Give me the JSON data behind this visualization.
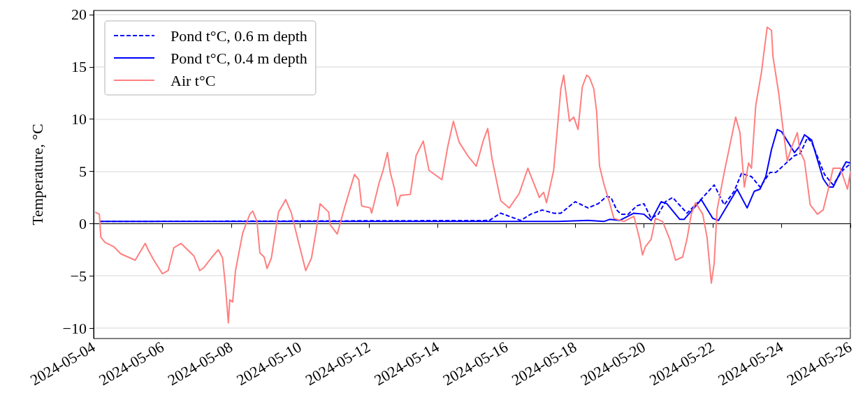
{
  "chart_data": {
    "type": "line",
    "ylabel": "Temperature, °C",
    "xlim": [
      "2024-05-04",
      "2024-05-26"
    ],
    "xticks": [
      {
        "value": "2024-05-04",
        "label": "2024-05-04"
      },
      {
        "value": "2024-05-06",
        "label": "2024-05-06"
      },
      {
        "value": "2024-05-08",
        "label": "2024-05-08"
      },
      {
        "value": "2024-05-10",
        "label": "2024-05-10"
      },
      {
        "value": "2024-05-12",
        "label": "2024-05-12"
      },
      {
        "value": "2024-05-14",
        "label": "2024-05-14"
      },
      {
        "value": "2024-05-16",
        "label": "2024-05-16"
      },
      {
        "value": "2024-05-18",
        "label": "2024-05-18"
      },
      {
        "value": "2024-05-20",
        "label": "2024-05-20"
      },
      {
        "value": "2024-05-22",
        "label": "2024-05-22"
      },
      {
        "value": "2024-05-24",
        "label": "2024-05-24"
      },
      {
        "value": "2024-05-26",
        "label": "2024-05-26"
      }
    ],
    "ylim": [
      -11,
      20.4
    ],
    "yticks": [
      {
        "value": -10,
        "label": "−10"
      },
      {
        "value": -5,
        "label": "−5"
      },
      0,
      5,
      10,
      15,
      20
    ],
    "grid": "y",
    "legend": "top left",
    "marker": "none",
    "series": [
      {
        "name": "Pond t°C, 0.6 m depth",
        "color": "#0000ff",
        "line_style": "dashed",
        "x": [
          "2024-05-04T04:00",
          "2024-05-15T12:00",
          "2024-05-15T20:00",
          "2024-05-16T10:00",
          "2024-05-16T17:00",
          "2024-05-17T01:00",
          "2024-05-17T09:00",
          "2024-05-17T14:00",
          "2024-05-18T00:00",
          "2024-05-18T09:00",
          "2024-05-18T16:00",
          "2024-05-18T22:00",
          "2024-05-19T01:00",
          "2024-05-19T05:00",
          "2024-05-19T08:00",
          "2024-05-19T13:00",
          "2024-05-19T19:00",
          "2024-05-20T00:00",
          "2024-05-20T05:00",
          "2024-05-20T10:00",
          "2024-05-20T15:00",
          "2024-05-20T20:00",
          "2024-05-21T06:00",
          "2024-05-21T15:00",
          "2024-05-22T01:00",
          "2024-05-22T08:00",
          "2024-05-22T15:00",
          "2024-05-22T20:00",
          "2024-05-23T03:00",
          "2024-05-23T09:00",
          "2024-05-23T16:00",
          "2024-05-23T20:00",
          "2024-05-24T09:00",
          "2024-05-24T13:00",
          "2024-05-24T18:00",
          "2024-05-24T21:00",
          "2024-05-25T06:00",
          "2024-05-25T12:00",
          "2024-05-25T18:00",
          "2024-05-25T22:00",
          "2024-05-26T00:00"
        ],
        "values": [
          0.2,
          0.3,
          1.0,
          0.3,
          0.9,
          1.3,
          1.0,
          1.0,
          2.1,
          1.5,
          1.9,
          2.6,
          2.5,
          1.3,
          0.9,
          0.9,
          1.7,
          1.9,
          0.5,
          0.9,
          2.1,
          2.5,
          1.0,
          2.2,
          3.7,
          1.8,
          3.1,
          4.8,
          4.5,
          3.5,
          4.9,
          4.9,
          6.5,
          6.7,
          8.2,
          7.8,
          4.7,
          3.7,
          5.0,
          5.5,
          5.7
        ]
      },
      {
        "name": "Pond t°C, 0.4 m depth",
        "color": "#0000ff",
        "line_style": "solid",
        "x": [
          "2024-05-04T04:00",
          "2024-05-17T12:00",
          "2024-05-18T09:00",
          "2024-05-18T20:00",
          "2024-05-19T00:00",
          "2024-05-19T07:00",
          "2024-05-19T17:00",
          "2024-05-20T00:00",
          "2024-05-20T05:00",
          "2024-05-20T12:00",
          "2024-05-20T16:00",
          "2024-05-21T01:00",
          "2024-05-21T04:00",
          "2024-05-21T16:00",
          "2024-05-22T00:00",
          "2024-05-22T04:00",
          "2024-05-22T17:00",
          "2024-05-23T00:00",
          "2024-05-23T05:00",
          "2024-05-23T09:00",
          "2024-05-23T13:00",
          "2024-05-23T17:00",
          "2024-05-23T21:00",
          "2024-05-24T00:00",
          "2024-05-24T09:00",
          "2024-05-24T12:00",
          "2024-05-24T16:00",
          "2024-05-24T21:00",
          "2024-05-25T05:00",
          "2024-05-25T09:00",
          "2024-05-25T12:00",
          "2024-05-25T17:00",
          "2024-05-25T21:00",
          "2024-05-26T00:00"
        ],
        "values": [
          0.2,
          0.2,
          0.3,
          0.2,
          0.4,
          0.3,
          1.0,
          0.9,
          0.3,
          2.1,
          1.9,
          0.4,
          0.4,
          2.3,
          0.5,
          0.3,
          3.3,
          1.5,
          3.1,
          3.3,
          4.5,
          7.1,
          9.0,
          8.8,
          6.8,
          7.3,
          8.5,
          8.0,
          4.3,
          3.5,
          3.5,
          4.9,
          5.9,
          5.8
        ]
      },
      {
        "name": "Air t°C",
        "color": "#ff7f7f",
        "line_style": "solid",
        "x": [
          "2024-05-04T01:00",
          "2024-05-04T04:00",
          "2024-05-04T05:00",
          "2024-05-04T08:00",
          "2024-05-04T14:00",
          "2024-05-04T19:00",
          "2024-05-05T05:00",
          "2024-05-05T12:00",
          "2024-05-05T14:00",
          "2024-05-05T18:00",
          "2024-05-06T00:00",
          "2024-05-06T04:00",
          "2024-05-06T08:00",
          "2024-05-06T13:00",
          "2024-05-06T22:00",
          "2024-05-07T02:00",
          "2024-05-07T05:00",
          "2024-05-07T10:00",
          "2024-05-07T15:00",
          "2024-05-07T18:00",
          "2024-05-07T20:00",
          "2024-05-07T22:00",
          "2024-05-07T23:00",
          "2024-05-08T01:00",
          "2024-05-08T03:00",
          "2024-05-08T08:00",
          "2024-05-08T13:00",
          "2024-05-08T15:00",
          "2024-05-08T18:00",
          "2024-05-08T20:00",
          "2024-05-08T23:00",
          "2024-05-09T01:00",
          "2024-05-09T04:00",
          "2024-05-09T09:00",
          "2024-05-09T14:00",
          "2024-05-09T18:00",
          "2024-05-09T23:00",
          "2024-05-10T04:00",
          "2024-05-10T08:00",
          "2024-05-10T11:00",
          "2024-05-10T14:00",
          "2024-05-10T20:00",
          "2024-05-10T21:00",
          "2024-05-11T02:00",
          "2024-05-11T07:00",
          "2024-05-11T14:00",
          "2024-05-11T17:00",
          "2024-05-11T19:00",
          "2024-05-12T01:00",
          "2024-05-12T02:00",
          "2024-05-12T07:00",
          "2024-05-12T10:00",
          "2024-05-12T13:00",
          "2024-05-12T15:00",
          "2024-05-12T18:00",
          "2024-05-12T20:00",
          "2024-05-12T22:00",
          "2024-05-13T05:00",
          "2024-05-13T09:00",
          "2024-05-13T14:00",
          "2024-05-13T18:00",
          "2024-05-14T03:00",
          "2024-05-14T07:00",
          "2024-05-14T11:00",
          "2024-05-14T15:00",
          "2024-05-14T21:00",
          "2024-05-15T03:00",
          "2024-05-15T08:00",
          "2024-05-15T11:00",
          "2024-05-15T14:00",
          "2024-05-15T20:00",
          "2024-05-16T02:00",
          "2024-05-16T09:00",
          "2024-05-16T15:00",
          "2024-05-16T23:00",
          "2024-05-17T02:00",
          "2024-05-17T04:00",
          "2024-05-17T09:00",
          "2024-05-17T14:00",
          "2024-05-17T16:00",
          "2024-05-17T20:00",
          "2024-05-17T23:00",
          "2024-05-18T02:00",
          "2024-05-18T05:00",
          "2024-05-18T08:00",
          "2024-05-18T10:00",
          "2024-05-18T13:00",
          "2024-05-18T15:00",
          "2024-05-18T17:00",
          "2024-05-18T20:00",
          "2024-05-19T00:00",
          "2024-05-19T03:00",
          "2024-05-19T10:00",
          "2024-05-19T17:00",
          "2024-05-19T21:00",
          "2024-05-19T23:00",
          "2024-05-20T01:00",
          "2024-05-20T05:00",
          "2024-05-20T08:00",
          "2024-05-20T13:00",
          "2024-05-20T18:00",
          "2024-05-20T22:00",
          "2024-05-21T03:00",
          "2024-05-21T06:00",
          "2024-05-21T09:00",
          "2024-05-21T12:00",
          "2024-05-21T17:00",
          "2024-05-21T20:00",
          "2024-05-21T23:00",
          "2024-05-22T01:00",
          "2024-05-22T03:00",
          "2024-05-22T08:00",
          "2024-05-22T13:00",
          "2024-05-22T16:00",
          "2024-05-22T19:00",
          "2024-05-22T22:00",
          "2024-05-23T01:00",
          "2024-05-23T03:00",
          "2024-05-23T06:00",
          "2024-05-23T10:00",
          "2024-05-23T12:00",
          "2024-05-23T14:00",
          "2024-05-23T17:00",
          "2024-05-23T18:00",
          "2024-05-23T22:00",
          "2024-05-24T01:00",
          "2024-05-24T04:00",
          "2024-05-24T07:00",
          "2024-05-24T11:00",
          "2024-05-24T13:00",
          "2024-05-24T16:00",
          "2024-05-24T20:00",
          "2024-05-25T01:00",
          "2024-05-25T05:00",
          "2024-05-25T09:00",
          "2024-05-25T12:00",
          "2024-05-25T17:00",
          "2024-05-25T22:00",
          "2024-05-26T00:00"
        ],
        "values": [
          1.1,
          0.9,
          -1.3,
          -1.8,
          -2.2,
          -2.9,
          -3.5,
          -1.9,
          -2.5,
          -3.5,
          -4.8,
          -4.5,
          -2.3,
          -1.9,
          -3.1,
          -4.5,
          -4.2,
          -3.3,
          -2.5,
          -3.3,
          -6.0,
          -9.5,
          -7.3,
          -7.5,
          -4.5,
          -0.9,
          0.9,
          1.2,
          0.2,
          -2.8,
          -3.2,
          -4.3,
          -3.3,
          1.1,
          2.3,
          1.0,
          -1.8,
          -4.5,
          -3.3,
          -0.9,
          1.9,
          1.1,
          -0.1,
          -1.0,
          1.5,
          4.7,
          4.2,
          1.7,
          1.5,
          1.0,
          3.8,
          5.1,
          6.8,
          4.9,
          3.3,
          1.7,
          2.7,
          2.8,
          6.5,
          7.9,
          5.1,
          4.2,
          7.3,
          9.8,
          7.8,
          6.5,
          5.5,
          8.0,
          9.1,
          6.2,
          2.2,
          1.5,
          2.9,
          5.3,
          2.5,
          3.0,
          2.0,
          5.1,
          12.9,
          14.2,
          9.8,
          10.2,
          9.0,
          13.1,
          14.2,
          14.0,
          12.9,
          10.7,
          5.5,
          3.8,
          2.0,
          0.5,
          0.2,
          0.7,
          -1.5,
          -3.0,
          -2.2,
          -1.5,
          0.5,
          0.2,
          -1.5,
          -3.5,
          -3.2,
          -1.5,
          0.9,
          2.0,
          0.9,
          -1.3,
          -5.7,
          -3.8,
          1.3,
          4.9,
          8.2,
          10.2,
          8.7,
          3.5,
          5.8,
          5.3,
          11.3,
          14.5,
          16.7,
          18.8,
          18.5,
          16.0,
          12.5,
          9.1,
          6.0,
          7.3,
          8.7,
          6.9,
          6.0,
          1.8,
          0.9,
          1.3,
          3.5,
          5.3,
          5.3,
          3.3,
          4.9
        ]
      }
    ]
  }
}
